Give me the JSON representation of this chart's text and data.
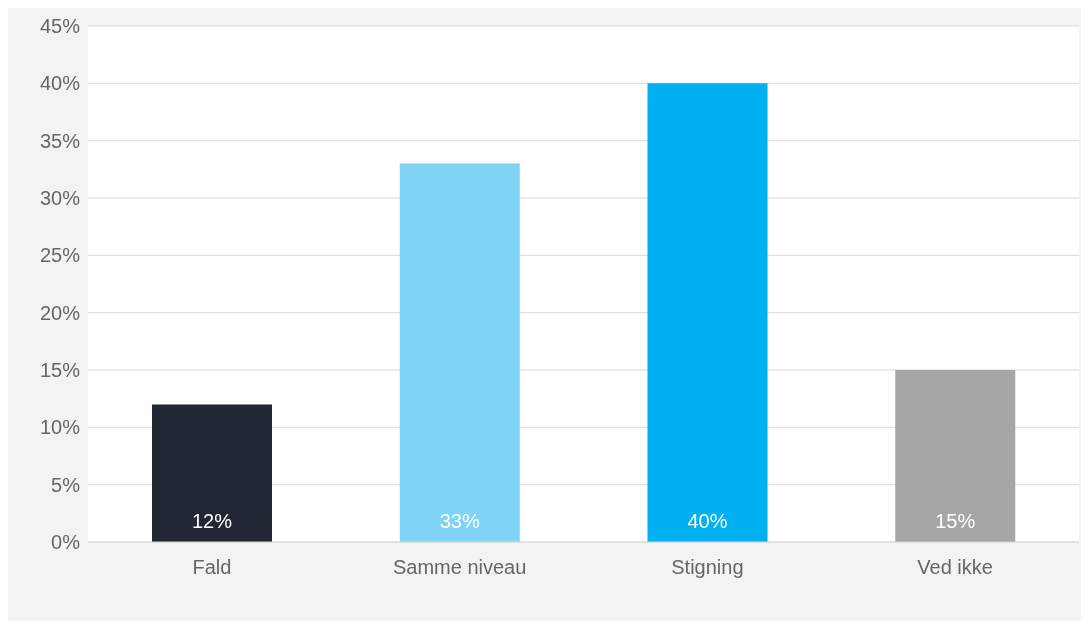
{
  "chart_data": {
    "type": "bar",
    "categories": [
      "Fald",
      "Samme niveau",
      "Stigning",
      "Ved ikke"
    ],
    "values": [
      12,
      33,
      40,
      15
    ],
    "colors": [
      "#222833",
      "#7fd3f5",
      "#00b0f0",
      "#a6a6a6"
    ],
    "value_labels": [
      "12%",
      "33%",
      "40%",
      "15%"
    ],
    "ylim": [
      0,
      45
    ],
    "yticks": [
      {
        "value": 0,
        "label": "0%"
      },
      {
        "value": 5,
        "label": "5%"
      },
      {
        "value": 10,
        "label": "10%"
      },
      {
        "value": 15,
        "label": "15%"
      },
      {
        "value": 20,
        "label": "20%"
      },
      {
        "value": 25,
        "label": "25%"
      },
      {
        "value": 30,
        "label": "30%"
      },
      {
        "value": 35,
        "label": "35%"
      },
      {
        "value": 40,
        "label": "40%"
      },
      {
        "value": 45,
        "label": "45%"
      }
    ],
    "grid": "y"
  }
}
